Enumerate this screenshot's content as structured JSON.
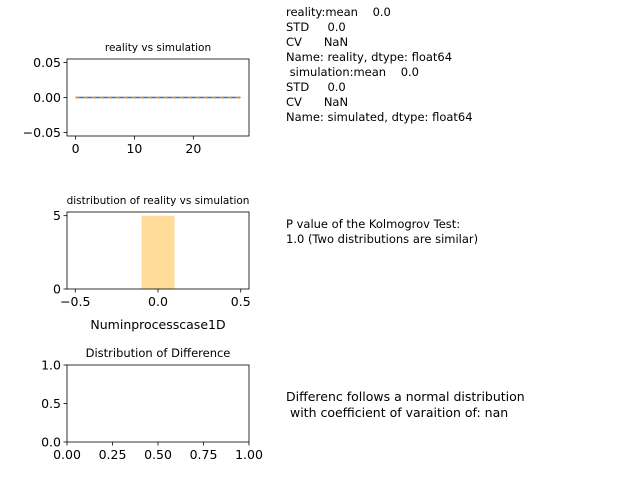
{
  "stats_text": "reality:mean    0.0\nSTD     0.0\nCV      NaN\nName: reality, dtype: float64\n simulation:mean    0.0\nSTD     0.0\nCV      NaN\nName: simulated, dtype: float64",
  "ks_text": "P value of the Kolmogrov Test:\n1.0 (Two distributions are similar)",
  "diff_text": "Differenc follows a normal distribution\n with coefficient of varaition of: nan",
  "colors": {
    "reality": "#1f77b4",
    "simulation": "#ff7f0e",
    "hist": "#ffdb99"
  },
  "chart_data": [
    {
      "type": "line",
      "title": "reality vs simulation",
      "xlabel": "",
      "ylabel": "",
      "xlim": [
        -1.45,
        29.45
      ],
      "ylim": [
        -0.055,
        0.055
      ],
      "xticks": [
        0,
        10,
        20
      ],
      "xtick_labels": [
        "0",
        "10",
        "20"
      ],
      "yticks": [
        0.05,
        0.0,
        -0.05
      ],
      "ytick_labels": [
        "0.05",
        "0.00",
        "−0.05"
      ],
      "series": [
        {
          "key": "reality",
          "x": [
            0,
            1,
            2,
            3,
            4,
            5,
            6,
            7,
            8,
            9,
            10,
            11,
            12,
            13,
            14,
            15,
            16,
            17,
            18,
            19,
            20,
            21,
            22,
            23,
            24,
            25,
            26,
            27,
            28
          ],
          "values": [
            0,
            0,
            0,
            0,
            0,
            0,
            0,
            0,
            0,
            0,
            0,
            0,
            0,
            0,
            0,
            0,
            0,
            0,
            0,
            0,
            0,
            0,
            0,
            0,
            0,
            0,
            0,
            0,
            0
          ],
          "style": "solid"
        },
        {
          "key": "simulation",
          "x": [
            0,
            1,
            2,
            3,
            4,
            5,
            6,
            7,
            8,
            9,
            10,
            11,
            12,
            13,
            14,
            15,
            16,
            17,
            18,
            19,
            20,
            21,
            22,
            23,
            24,
            25,
            26,
            27,
            28
          ],
          "values": [
            0,
            0,
            0,
            0,
            0,
            0,
            0,
            0,
            0,
            0,
            0,
            0,
            0,
            0,
            0,
            0,
            0,
            0,
            0,
            0,
            0,
            0,
            0,
            0,
            0,
            0,
            0,
            0,
            0
          ],
          "style": "dashed"
        }
      ]
    },
    {
      "type": "bar",
      "title": "distribution of reality vs simulation",
      "xlabel": "Numinprocesscase1D",
      "ylabel": "",
      "xlim": [
        -0.55,
        0.55
      ],
      "ylim": [
        0,
        5.25
      ],
      "xticks": [
        -0.5,
        0.0,
        0.5
      ],
      "xtick_labels": [
        "−0.5",
        "0.0",
        "0.5"
      ],
      "yticks": [
        5,
        0
      ],
      "ytick_labels": [
        "5",
        "0"
      ],
      "bins": [
        [
          -0.1,
          0.1
        ]
      ],
      "values": [
        5
      ]
    },
    {
      "type": "line",
      "title": "Distribution of Difference",
      "xlabel": "",
      "ylabel": "",
      "xlim": [
        0,
        1
      ],
      "ylim": [
        0,
        1
      ],
      "xticks": [
        0,
        0.25,
        0.5,
        0.75,
        1.0
      ],
      "xtick_labels": [
        "0.00",
        "0.25",
        "0.50",
        "0.75",
        "1.00"
      ],
      "yticks": [
        1.0,
        0.5,
        0.0
      ],
      "ytick_labels": [
        "1.0",
        "0.5",
        "0.0"
      ],
      "series": []
    }
  ]
}
